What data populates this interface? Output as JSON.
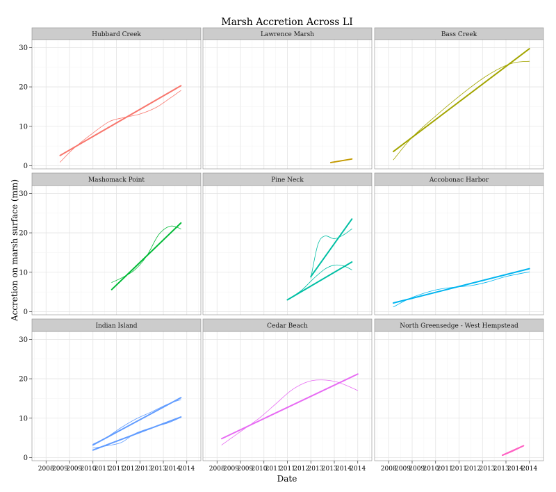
{
  "chart_data": {
    "type": "line",
    "title": "Marsh Accretion Across LI",
    "xlabel": "Date",
    "ylabel": "Accretion on marsh surface (mm)",
    "xlim": [
      2007.4,
      2014.6
    ],
    "ylim": [
      -0.8,
      32
    ],
    "x_ticks": [
      "2008",
      "2009",
      "2010",
      "2011",
      "2012",
      "2013",
      "2014"
    ],
    "x_tick_values": [
      2008,
      2009,
      2010,
      2011,
      2012,
      2013,
      2014
    ],
    "x_tick_labels_repeated": [
      "2008",
      "2009",
      "2009",
      "2010",
      "2011",
      "2011",
      "2012",
      "2013",
      "2013",
      "2014",
      "2014"
    ],
    "y_ticks": [
      0,
      10,
      20,
      30
    ],
    "grid": true,
    "legend": "none",
    "panels": [
      {
        "name": "Hubbard Creek",
        "color": "#F8766D",
        "series": [
          {
            "kind": "linear",
            "x": [
              2008.6,
              2013.75
            ],
            "y": [
              2.6,
              20.3
            ]
          },
          {
            "kind": "smooth",
            "x": [
              2008.6,
              2009.2,
              2010.0,
              2010.7,
              2011.3,
              2012.0,
              2012.7,
              2013.3,
              2013.75
            ],
            "y": [
              0.9,
              4.5,
              8.3,
              11.2,
              12.2,
              13.1,
              14.8,
              17.2,
              19.1
            ]
          }
        ]
      },
      {
        "name": "Lawrence Marsh",
        "color": "#C49A00",
        "series": [
          {
            "kind": "linear",
            "x": [
              2012.85,
              2013.75
            ],
            "y": [
              0.8,
              1.7
            ]
          }
        ]
      },
      {
        "name": "Bass Creek",
        "color": "#A3A500",
        "series": [
          {
            "kind": "linear",
            "x": [
              2008.2,
              2014.0
            ],
            "y": [
              3.6,
              29.7
            ]
          },
          {
            "kind": "smooth",
            "x": [
              2008.2,
              2009.0,
              2010.0,
              2011.0,
              2012.0,
              2012.8,
              2013.4,
              2014.0
            ],
            "y": [
              1.5,
              7.2,
              12.6,
              17.6,
              22.1,
              24.9,
              26.2,
              26.5
            ]
          }
        ]
      },
      {
        "name": "Mashomack Point",
        "color": "#00B936",
        "series": [
          {
            "kind": "linear",
            "x": [
              2010.8,
              2013.75
            ],
            "y": [
              5.6,
              22.5
            ]
          },
          {
            "kind": "smooth",
            "x": [
              2010.8,
              2011.3,
              2011.8,
              2012.3,
              2012.8,
              2013.3,
              2013.75
            ],
            "y": [
              7.4,
              8.8,
              10.7,
              14.2,
              19.5,
              21.7,
              21.0
            ]
          }
        ]
      },
      {
        "name": "Pine Neck",
        "color": "#00BFA4",
        "series": [
          {
            "kind": "linear",
            "x": [
              2011.0,
              2013.75
            ],
            "y": [
              3.0,
              12.6
            ]
          },
          {
            "kind": "smooth",
            "x": [
              2011.0,
              2011.6,
              2012.1,
              2012.6,
              2013.0,
              2013.4,
              2013.75
            ],
            "y": [
              3.0,
              5.4,
              8.3,
              10.8,
              11.8,
              11.6,
              10.6
            ]
          },
          {
            "kind": "linear",
            "x": [
              2012.0,
              2013.75
            ],
            "y": [
              8.9,
              23.5
            ]
          },
          {
            "kind": "smooth",
            "x": [
              2012.0,
              2012.3,
              2012.6,
              2013.0,
              2013.4,
              2013.75
            ],
            "y": [
              8.5,
              17.0,
              19.2,
              18.5,
              19.5,
              21.0
            ]
          }
        ]
      },
      {
        "name": "Accobonac Harbor",
        "color": "#00B4EF",
        "series": [
          {
            "kind": "linear",
            "x": [
              2008.2,
              2014.0
            ],
            "y": [
              2.2,
              10.9
            ]
          },
          {
            "kind": "smooth",
            "x": [
              2008.2,
              2009.0,
              2010.0,
              2010.8,
              2011.5,
              2012.2,
              2013.0,
              2014.0
            ],
            "y": [
              1.2,
              3.6,
              5.5,
              6.2,
              6.6,
              7.5,
              8.9,
              10.1
            ]
          }
        ]
      },
      {
        "name": "Indian Island",
        "color": "#619CFF",
        "series": [
          {
            "kind": "linear",
            "x": [
              2010.0,
              2013.75
            ],
            "y": [
              1.9,
              10.3
            ]
          },
          {
            "kind": "smooth",
            "x": [
              2010.0,
              2010.6,
              2011.2,
              2011.8,
              2012.5,
              2013.2,
              2013.75
            ],
            "y": [
              2.4,
              3.0,
              3.8,
              6.1,
              7.6,
              8.8,
              10.2
            ]
          },
          {
            "kind": "linear",
            "x": [
              2010.0,
              2013.75
            ],
            "y": [
              3.2,
              15.2
            ]
          },
          {
            "kind": "smooth",
            "x": [
              2010.0,
              2010.6,
              2011.2,
              2011.8,
              2012.5,
              2013.2,
              2013.75
            ],
            "y": [
              3.4,
              5.2,
              7.6,
              9.7,
              11.6,
              13.6,
              14.7
            ]
          }
        ]
      },
      {
        "name": "Cedar Beach",
        "color": "#E76BF3",
        "series": [
          {
            "kind": "linear",
            "x": [
              2008.2,
              2014.0
            ],
            "y": [
              4.8,
              21.2
            ]
          },
          {
            "kind": "smooth",
            "x": [
              2008.2,
              2009.0,
              2009.8,
              2010.5,
              2011.2,
              2011.9,
              2012.5,
              2013.1,
              2013.6,
              2014.0
            ],
            "y": [
              3.2,
              6.6,
              10.0,
              13.6,
              17.2,
              19.3,
              19.7,
              19.2,
              18.1,
              17.0
            ]
          }
        ]
      },
      {
        "name": "North Greensedge - West Hempstead",
        "color": "#FF61C3",
        "series": [
          {
            "kind": "linear",
            "x": [
              2012.85,
              2013.75
            ],
            "y": [
              0.6,
              3.0
            ]
          },
          {
            "kind": "smooth",
            "x": [
              2012.85,
              2013.3,
              2013.75
            ],
            "y": [
              0.5,
              1.6,
              2.9
            ]
          }
        ]
      }
    ]
  }
}
